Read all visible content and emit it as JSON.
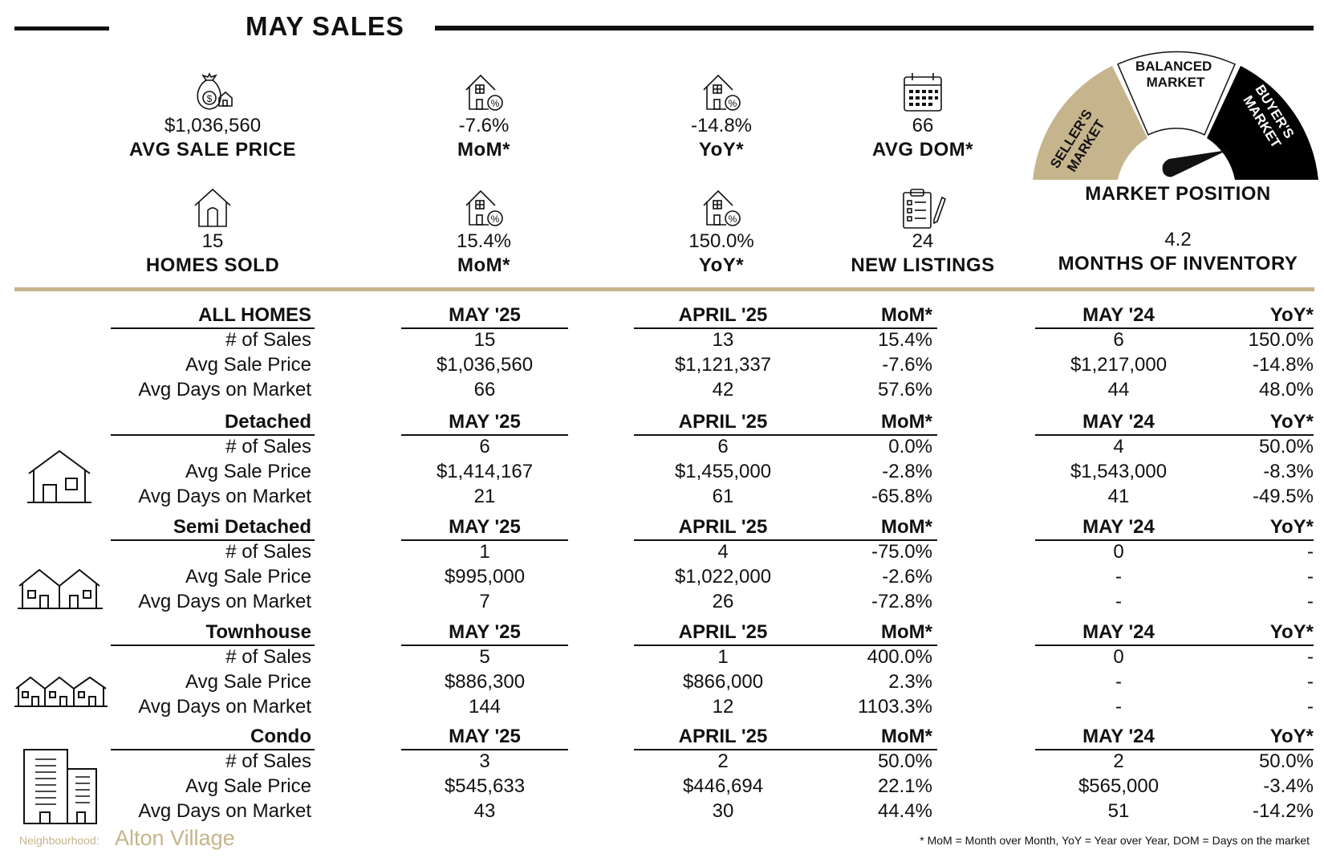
{
  "title": "MAY SALES",
  "stats": [
    {
      "value": "$1,036,560",
      "label": "AVG SALE PRICE",
      "icon": "money-bag-house-icon"
    },
    {
      "value": "-7.6%",
      "label": "MoM*",
      "icon": "house-percent-icon"
    },
    {
      "value": "-14.8%",
      "label": "YoY*",
      "icon": "house-percent-icon"
    },
    {
      "value": "66",
      "label": "AVG DOM*",
      "icon": "calendar-icon"
    },
    {
      "value": "15",
      "label": "HOMES SOLD",
      "icon": "house-icon"
    },
    {
      "value": "15.4%",
      "label": "MoM*",
      "icon": "house-percent-icon"
    },
    {
      "value": "150.0%",
      "label": "YoY*",
      "icon": "house-percent-icon"
    },
    {
      "value": "24",
      "label": "NEW LISTINGS",
      "icon": "clipboard-pen-icon"
    }
  ],
  "market": {
    "seller": "SELLER'S MARKET",
    "seller_l1": "SELLER'S",
    "seller_l2": "MARKET",
    "balanced_l1": "BALANCED",
    "balanced_l2": "MARKET",
    "buyer_l1": "BUYER'S",
    "buyer_l2": "MARKET",
    "label": "MARKET POSITION",
    "inventory_value": "4.2",
    "inventory_label": "MONTHS OF INVENTORY",
    "colors": {
      "seller": "#c6b48c",
      "balanced": "#ffffff",
      "buyer": "#000000"
    }
  },
  "columns": {
    "current": "MAY '25",
    "previous": "APRIL '25",
    "mom": "MoM*",
    "last_year": "MAY '24",
    "yoy": "YoY*"
  },
  "sections": [
    {
      "name": "ALL HOMES",
      "icon": "",
      "rows": [
        {
          "label": "# of Sales",
          "current": "15",
          "previous": "13",
          "mom": "15.4%",
          "last_year": "6",
          "yoy": "150.0%"
        },
        {
          "label": "Avg Sale Price",
          "current": "$1,036,560",
          "previous": "$1,121,337",
          "mom": "-7.6%",
          "last_year": "$1,217,000",
          "yoy": "-14.8%"
        },
        {
          "label": "Avg Days on Market",
          "current": "66",
          "previous": "42",
          "mom": "57.6%",
          "last_year": "44",
          "yoy": "48.0%"
        }
      ]
    },
    {
      "name": "Detached",
      "icon": "detached-house-icon",
      "rows": [
        {
          "label": "# of Sales",
          "current": "6",
          "previous": "6",
          "mom": "0.0%",
          "last_year": "4",
          "yoy": "50.0%"
        },
        {
          "label": "Avg Sale Price",
          "current": "$1,414,167",
          "previous": "$1,455,000",
          "mom": "-2.8%",
          "last_year": "$1,543,000",
          "yoy": "-8.3%"
        },
        {
          "label": "Avg Days on Market",
          "current": "21",
          "previous": "61",
          "mom": "-65.8%",
          "last_year": "41",
          "yoy": "-49.5%"
        }
      ]
    },
    {
      "name": "Semi Detached",
      "icon": "semi-detached-house-icon",
      "rows": [
        {
          "label": "# of Sales",
          "current": "1",
          "previous": "4",
          "mom": "-75.0%",
          "last_year": "0",
          "yoy": "-"
        },
        {
          "label": "Avg Sale Price",
          "current": "$995,000",
          "previous": "$1,022,000",
          "mom": "-2.6%",
          "last_year": "-",
          "yoy": "-"
        },
        {
          "label": "Avg Days on Market",
          "current": "7",
          "previous": "26",
          "mom": "-72.8%",
          "last_year": "-",
          "yoy": "-"
        }
      ]
    },
    {
      "name": "Townhouse",
      "icon": "townhouse-icon",
      "rows": [
        {
          "label": "# of Sales",
          "current": "5",
          "previous": "1",
          "mom": "400.0%",
          "last_year": "0",
          "yoy": "-"
        },
        {
          "label": "Avg Sale Price",
          "current": "$886,300",
          "previous": "$866,000",
          "mom": "2.3%",
          "last_year": "-",
          "yoy": "-"
        },
        {
          "label": "Avg Days on Market",
          "current": "144",
          "previous": "12",
          "mom": "1103.3%",
          "last_year": "-",
          "yoy": "-"
        }
      ]
    },
    {
      "name": "Condo",
      "icon": "condo-building-icon",
      "rows": [
        {
          "label": "# of Sales",
          "current": "3",
          "previous": "2",
          "mom": "50.0%",
          "last_year": "2",
          "yoy": "50.0%"
        },
        {
          "label": "Avg Sale Price",
          "current": "$545,633",
          "previous": "$446,694",
          "mom": "22.1%",
          "last_year": "$565,000",
          "yoy": "-3.4%"
        },
        {
          "label": "Avg Days on Market",
          "current": "43",
          "previous": "30",
          "mom": "44.4%",
          "last_year": "51",
          "yoy": "-14.2%"
        }
      ]
    }
  ],
  "footer": {
    "neighbourhood_label": "Neighbourhood:",
    "neighbourhood": "Alton Village",
    "note": "* MoM = Month over Month, YoY = Year over Year, DOM = Days on the market"
  }
}
